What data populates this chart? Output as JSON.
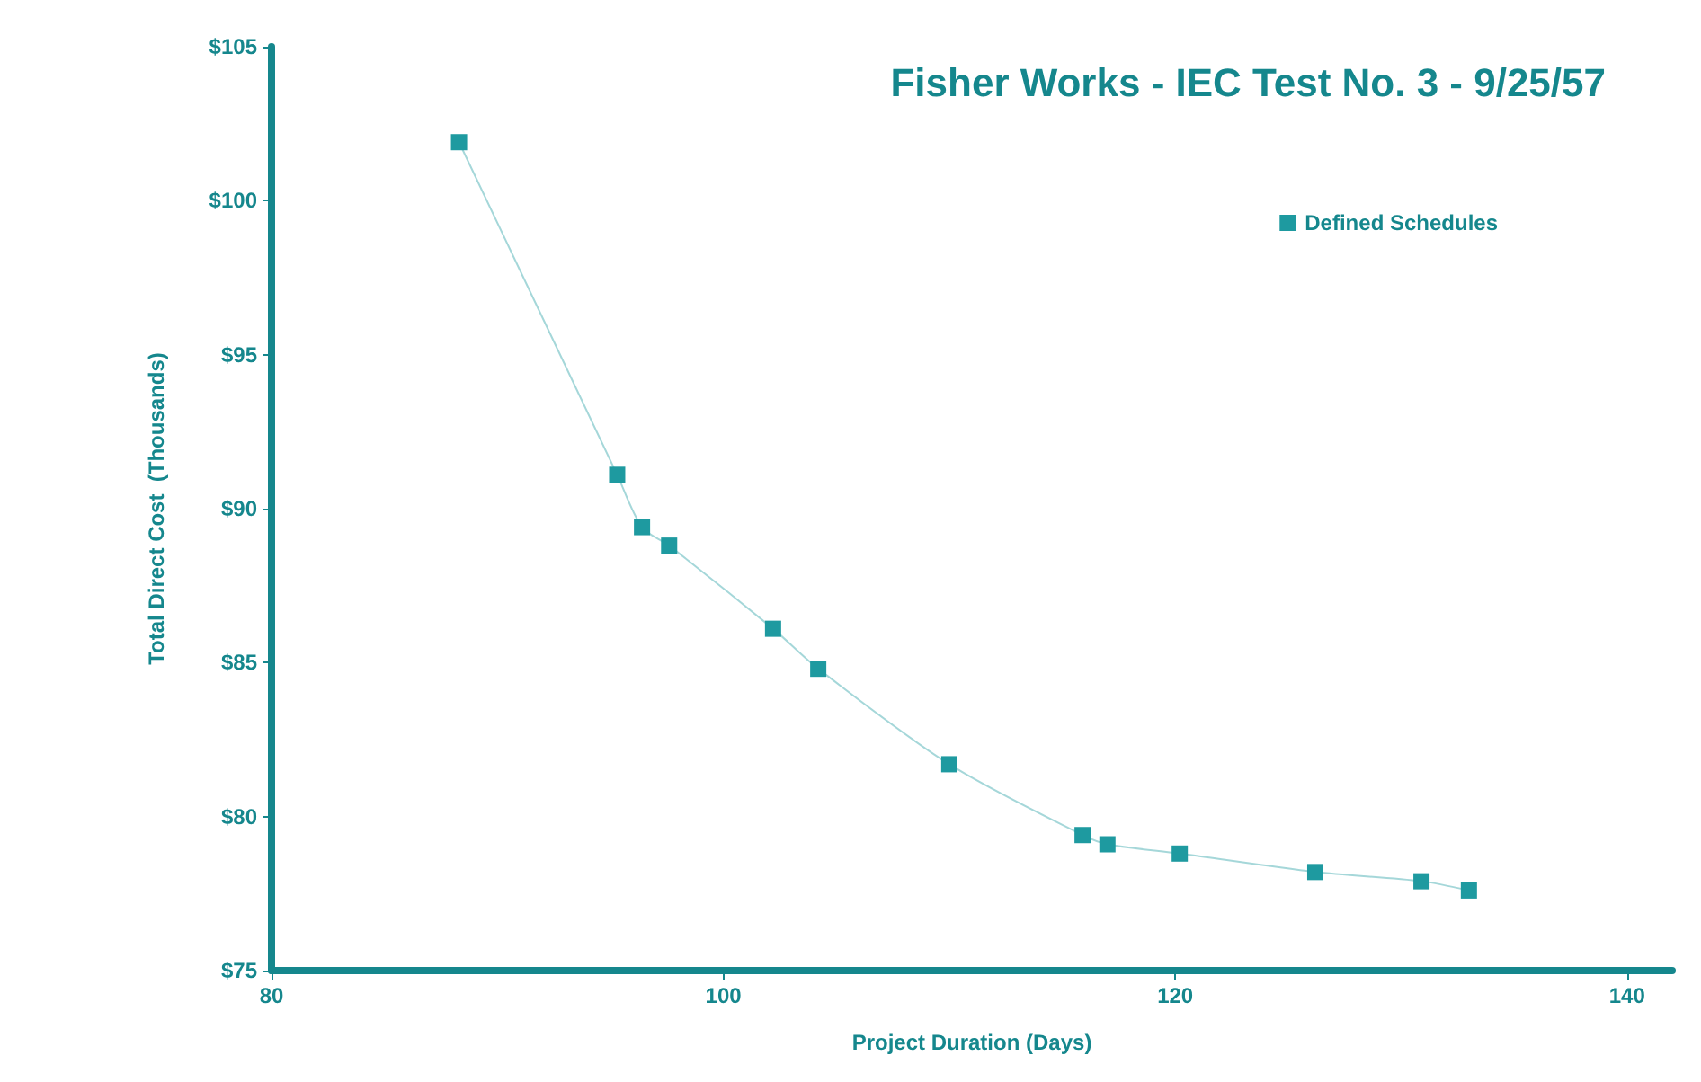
{
  "chart_data": {
    "type": "line",
    "title": "Fisher Works - IEC Test No. 3 - 9/25/57",
    "xlabel": "Project Duration (Days)",
    "ylabel": "Total Direct Cost  (Thousands)",
    "x": [
      88.3,
      95.3,
      96.4,
      97.6,
      102.2,
      104.2,
      110.0,
      115.9,
      117.0,
      120.2,
      126.2,
      130.9,
      133.0
    ],
    "series": [
      {
        "name": "Defined Schedules",
        "color": "#1e9aa0",
        "values": [
          101.9,
          91.1,
          89.4,
          88.8,
          86.1,
          84.8,
          81.7,
          79.4,
          79.1,
          78.8,
          78.2,
          77.9,
          77.6
        ]
      }
    ],
    "xlim": [
      80,
      142
    ],
    "xticks": [
      80,
      100,
      120,
      140
    ],
    "ylim": [
      75,
      105
    ],
    "yticks": [
      {
        "value": 75,
        "label": "$75"
      },
      {
        "value": 80,
        "label": "$80"
      },
      {
        "value": 85,
        "label": "$85"
      },
      {
        "value": 90,
        "label": "$90"
      },
      {
        "value": 95,
        "label": "$95"
      },
      {
        "value": 100,
        "label": "$100"
      },
      {
        "value": 105,
        "label": "$105"
      }
    ],
    "grid": false,
    "legend": "top right",
    "marker": "square",
    "line_style": "solid"
  }
}
